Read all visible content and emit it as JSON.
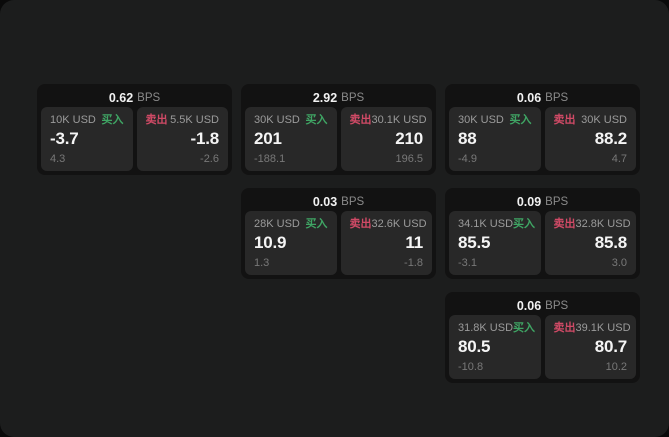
{
  "colors": {
    "panel_bg": "#1c1d1d",
    "card_bg": "#121212",
    "tile_bg": "#282828",
    "buy_accent": "#3fa564",
    "sell_accent": "#d04a66",
    "price_text": "#f5f5f5",
    "muted_text": "#9b9b9b"
  },
  "cards": [
    {
      "bps": "0.62",
      "bps_unit": "BPS",
      "buy": {
        "size": "10K USD",
        "label": "买入",
        "price": "-3.7",
        "delta": "4.3"
      },
      "sell": {
        "label": "卖出",
        "size": "5.5K USD",
        "price": "-1.8",
        "delta": "-2.6"
      }
    },
    {
      "bps": "2.92",
      "bps_unit": "BPS",
      "buy": {
        "size": "30K USD",
        "label": "买入",
        "price": "201",
        "delta": "-188.1"
      },
      "sell": {
        "label": "卖出",
        "size": "30.1K USD",
        "price": "210",
        "delta": "196.5"
      }
    },
    {
      "bps": "0.06",
      "bps_unit": "BPS",
      "buy": {
        "size": "30K USD",
        "label": "买入",
        "price": "88",
        "delta": "-4.9"
      },
      "sell": {
        "label": "卖出",
        "size": "30K USD",
        "price": "88.2",
        "delta": "4.7"
      }
    },
    {
      "bps": "0.03",
      "bps_unit": "BPS",
      "buy": {
        "size": "28K USD",
        "label": "买入",
        "price": "10.9",
        "delta": "1.3"
      },
      "sell": {
        "label": "卖出",
        "size": "32.6K USD",
        "price": "11",
        "delta": "-1.8"
      }
    },
    {
      "bps": "0.09",
      "bps_unit": "BPS",
      "buy": {
        "size": "34.1K USD",
        "label": "买入",
        "price": "85.5",
        "delta": "-3.1"
      },
      "sell": {
        "label": "卖出",
        "size": "32.8K USD",
        "price": "85.8",
        "delta": "3.0"
      }
    },
    {
      "bps": "0.06",
      "bps_unit": "BPS",
      "buy": {
        "size": "31.8K USD",
        "label": "买入",
        "price": "80.5",
        "delta": "-10.8"
      },
      "sell": {
        "label": "卖出",
        "size": "39.1K USD",
        "price": "80.7",
        "delta": "10.2"
      }
    }
  ]
}
